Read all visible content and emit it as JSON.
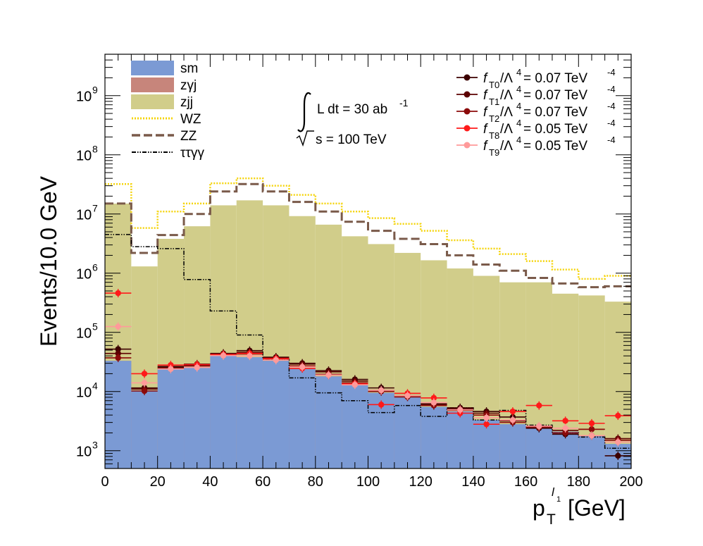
{
  "chart_data": {
    "type": "histogram",
    "title": "",
    "xlabel": "p_T^{l_1} [GeV]",
    "xlabel_parts": {
      "main": "p",
      "sub": "T",
      "sup": "l",
      "supsub": "1",
      "unit": "[GeV]"
    },
    "ylabel": "Events/10.0 GeV",
    "xlim": [
      0,
      200
    ],
    "ylim": [
      500,
      5000000000
    ],
    "yscale": "log",
    "x_tick_labels": [
      "0",
      "20",
      "40",
      "60",
      "80",
      "100",
      "120",
      "140",
      "160",
      "180",
      "200"
    ],
    "y_tick_labels": [
      {
        "base": "10",
        "exp": "3"
      },
      {
        "base": "10",
        "exp": "4"
      },
      {
        "base": "10",
        "exp": "5"
      },
      {
        "base": "10",
        "exp": "6"
      },
      {
        "base": "10",
        "exp": "7"
      },
      {
        "base": "10",
        "exp": "8"
      },
      {
        "base": "10",
        "exp": "9"
      }
    ],
    "bin_edges": [
      0,
      10,
      20,
      30,
      40,
      50,
      60,
      70,
      80,
      90,
      100,
      110,
      120,
      130,
      140,
      150,
      160,
      170,
      180,
      190,
      200
    ],
    "stacked_totals": {
      "sm": [
        33000,
        10500,
        24000,
        26000,
        40000,
        38000,
        33000,
        25000,
        18000,
        13000,
        9500,
        8000,
        5500,
        4600,
        3300,
        2800,
        2500,
        2100,
        1800,
        1300
      ],
      "zgj": [
        33000,
        10500,
        24000,
        26000,
        40000,
        38000,
        33000,
        25000,
        18000,
        13000,
        9500,
        8000,
        5500,
        4600,
        3300,
        2800,
        2500,
        2100,
        1800,
        1300
      ],
      "zjj": [
        15000000,
        1300000,
        3800000,
        6200000,
        14000000,
        17000000,
        14000000,
        9200000,
        6600000,
        4200000,
        3100000,
        2200000,
        1650000,
        1200000,
        900000,
        700000,
        700000,
        450000,
        420000,
        330000
      ]
    },
    "lines": {
      "WZ": [
        32000000,
        5800000,
        11000000,
        15000000,
        33000000,
        40000000,
        30000000,
        21000000,
        15000000,
        11000000,
        8500000,
        6800000,
        5200000,
        3600000,
        2600000,
        2100000,
        1600000,
        1150000,
        800000,
        900000
      ],
      "ZZ": [
        15000000,
        2200000,
        4400000,
        10000000,
        24000000,
        32000000,
        24000000,
        16000000,
        11000000,
        7400000,
        5200000,
        3800000,
        3100000,
        2000000,
        1400000,
        1100000,
        830000,
        670000,
        580000,
        600000
      ],
      "tautaugg": [
        4500000,
        2800000,
        2600000,
        780000,
        230000,
        90000,
        35000,
        17000,
        9500,
        7000,
        4400,
        5800,
        3800,
        5300,
        3300,
        4800,
        2700,
        2000,
        1700,
        1100
      ]
    },
    "series": [
      {
        "name": "fT0",
        "label_base": "f",
        "label_sub": "T0",
        "coupling": "0.07",
        "exp": "-4",
        "color": "#3c0000",
        "values": [
          52000,
          11500,
          26500,
          29000,
          44000,
          49000,
          38000,
          30000,
          22500,
          16000,
          11500,
          8500,
          6200,
          5300,
          4600,
          3700,
          2400,
          1900,
          1800,
          820
        ]
      },
      {
        "name": "fT1",
        "label_base": "f",
        "label_sub": "T1",
        "coupling": "0.07",
        "exp": "-4",
        "color": "#5c0000",
        "values": [
          44000,
          11000,
          25500,
          28000,
          43000,
          46000,
          37000,
          29000,
          21500,
          15000,
          10500,
          8200,
          6000,
          5100,
          4300,
          3200,
          2500,
          2200,
          2300,
          1600
        ]
      },
      {
        "name": "fT2",
        "label_base": "f",
        "label_sub": "T2",
        "coupling": "0.07",
        "exp": "-4",
        "color": "#8b0a0a",
        "values": [
          37000,
          10200,
          24500,
          27000,
          42500,
          43000,
          35500,
          27000,
          19500,
          14000,
          10000,
          8100,
          5800,
          4800,
          4000,
          3000,
          2500,
          2000,
          2300,
          1500
        ]
      },
      {
        "name": "fT8",
        "label_base": "f",
        "label_sub": "T8",
        "coupling": "0.05",
        "exp": "-4",
        "color": "#ff1a1a",
        "values": [
          460000,
          20000,
          28000,
          28500,
          42000,
          44000,
          36000,
          24500,
          19000,
          13500,
          6000,
          9300,
          7800,
          4300,
          2800,
          4600,
          5800,
          3200,
          2900,
          3900
        ]
      },
      {
        "name": "fT9",
        "label_base": "f",
        "label_sub": "T9",
        "coupling": "0.05",
        "exp": "-4",
        "color": "#ff9a9a",
        "values": [
          125000,
          14000,
          24000,
          25500,
          40500,
          40000,
          34000,
          26000,
          19000,
          13000,
          10500,
          8500,
          6500,
          4900,
          3600,
          3300,
          2600,
          2400,
          1800,
          1400
        ]
      }
    ],
    "legend_left": [
      {
        "label": "sm",
        "kind": "fill",
        "color": "#7b9ad4"
      },
      {
        "label": "zγj",
        "kind": "fill",
        "color": "#c7857b"
      },
      {
        "label": "zjj",
        "kind": "fill",
        "color": "#d1cd8a"
      },
      {
        "label": "WZ",
        "kind": "dotted",
        "color": "#f5d40a"
      },
      {
        "label": "ZZ",
        "kind": "dashed",
        "color": "#7a5a4a"
      },
      {
        "label": "ττγγ",
        "kind": "dashdot",
        "color": "#000000"
      }
    ],
    "annotation": {
      "lumi_text": "L dt = 30 ab",
      "lumi_exp": "-1",
      "sqrts_text": "s = 100 TeV"
    },
    "legend_right_common": {
      "mid": "/Λ",
      "pow": "4",
      "eq": " = ",
      "unit": " TeV"
    },
    "legend_placement": "top-right"
  }
}
